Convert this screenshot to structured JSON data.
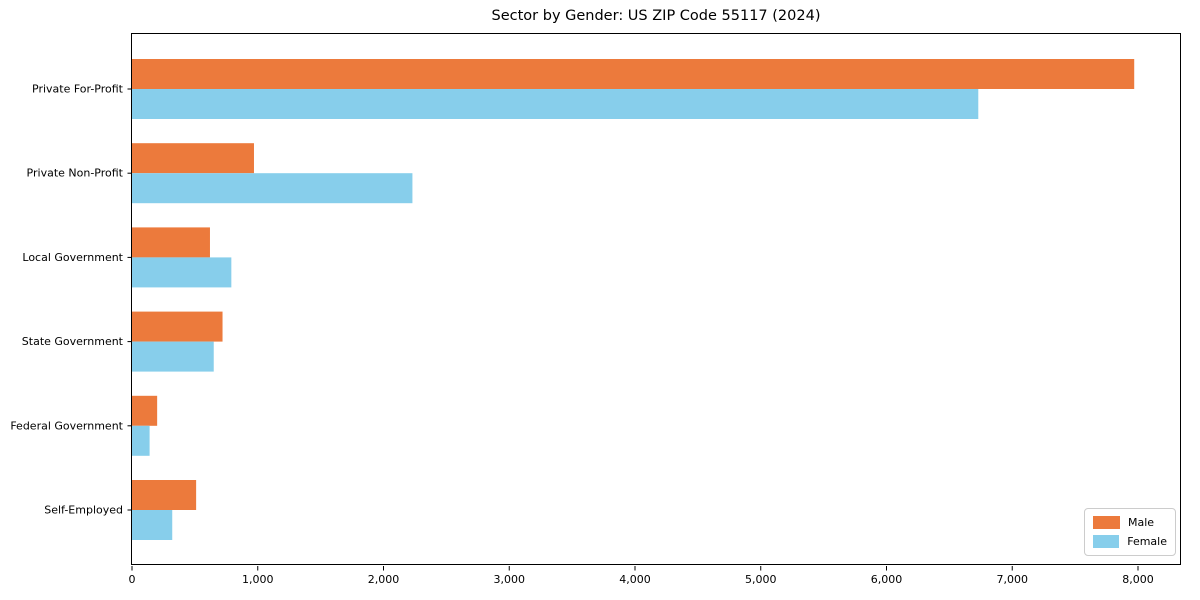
{
  "chart_data": {
    "type": "bar",
    "orientation": "horizontal",
    "title": "Sector by Gender: US ZIP Code 55117 (2024)",
    "categories": [
      "Private For-Profit",
      "Private Non-Profit",
      "Local Government",
      "State Government",
      "Federal Government",
      "Self-Employed"
    ],
    "series": [
      {
        "name": "Male",
        "color": "#EC7A3C",
        "values": [
          7970,
          970,
          620,
          720,
          200,
          510
        ]
      },
      {
        "name": "Female",
        "color": "#87CEEB",
        "values": [
          6730,
          2230,
          790,
          650,
          140,
          320
        ]
      }
    ],
    "xlabel": "",
    "ylabel": "",
    "xlim": [
      0,
      8350
    ],
    "xticks": [
      0,
      1000,
      2000,
      3000,
      4000,
      5000,
      6000,
      7000,
      8000
    ],
    "xtick_labels": [
      "0",
      "1,000",
      "2,000",
      "3,000",
      "4,000",
      "5,000",
      "6,000",
      "7,000",
      "8,000"
    ],
    "grid": false,
    "legend_position": "lower right",
    "colors": {
      "axis": "#000000",
      "text": "#000000",
      "legend_border": "#cccccc",
      "background": "#ffffff"
    }
  }
}
